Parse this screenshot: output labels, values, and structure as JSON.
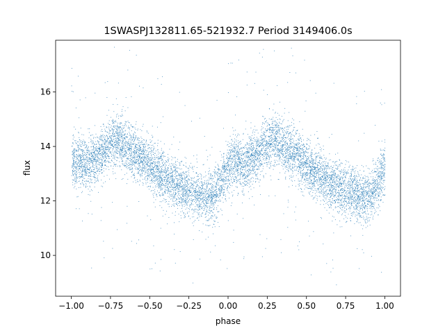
{
  "chart_data": {
    "type": "scatter",
    "title": "1SWASPJ132811.65-521932.7 Period 3149406.0s",
    "xlabel": "phase",
    "ylabel": "flux",
    "xlim": [
      -1.1,
      1.1
    ],
    "ylim": [
      8.5,
      17.9
    ],
    "x_ticks": [
      -1.0,
      -0.75,
      -0.5,
      -0.25,
      0.0,
      0.25,
      0.5,
      0.75,
      1.0
    ],
    "x_tick_labels": [
      "−1.00",
      "−0.75",
      "−0.50",
      "−0.25",
      "0.00",
      "0.25",
      "0.50",
      "0.75",
      "1.00"
    ],
    "y_ticks": [
      10,
      12,
      14,
      16
    ],
    "y_tick_labels": [
      "10",
      "12",
      "14",
      "16"
    ],
    "grid": false,
    "marker_color": "#1f77b4",
    "phase_range": [
      -1.0,
      1.0
    ],
    "flux_trend": {
      "phase": [
        -1.0,
        -0.95,
        -0.9,
        -0.85,
        -0.8,
        -0.75,
        -0.7,
        -0.65,
        -0.6,
        -0.55,
        -0.5,
        -0.45,
        -0.4,
        -0.35,
        -0.3,
        -0.25,
        -0.2,
        -0.15,
        -0.1,
        -0.05,
        0.0,
        0.05,
        0.1,
        0.15,
        0.2,
        0.25,
        0.3,
        0.35,
        0.4,
        0.45,
        0.5,
        0.55,
        0.6,
        0.65,
        0.7,
        0.75,
        0.8,
        0.85,
        0.9,
        0.95,
        1.0
      ],
      "flux": [
        13.3,
        13.5,
        13.3,
        13.6,
        13.8,
        14.1,
        14.3,
        14.0,
        13.8,
        13.6,
        13.3,
        13.0,
        12.8,
        12.7,
        12.5,
        12.4,
        12.3,
        12.1,
        12.2,
        12.6,
        13.3,
        13.5,
        13.3,
        13.6,
        13.8,
        14.1,
        14.3,
        14.0,
        13.8,
        13.6,
        13.3,
        13.0,
        12.8,
        12.7,
        12.5,
        12.4,
        12.3,
        12.1,
        12.2,
        12.6,
        13.3
      ],
      "scatter_halfwidth": 0.85
    },
    "point_count": 9000,
    "outlier_fraction": 0.03
  }
}
